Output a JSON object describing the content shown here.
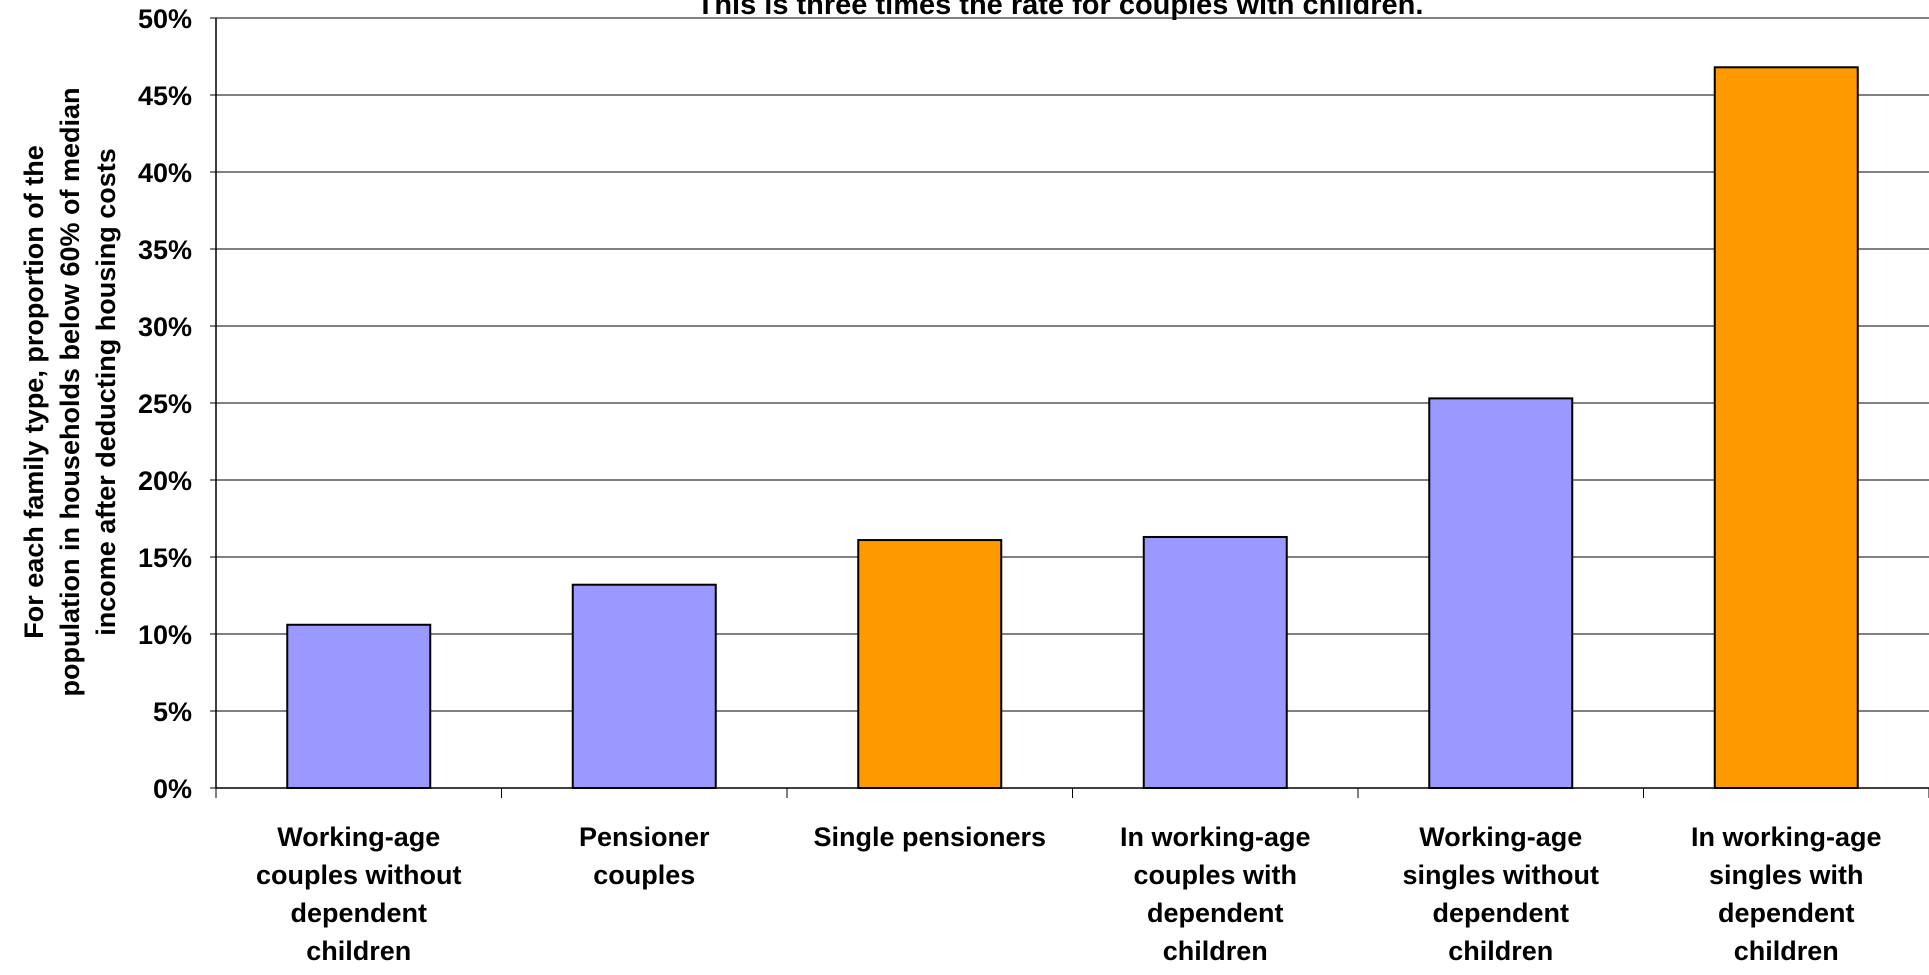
{
  "chart_data": {
    "type": "bar",
    "title": "This is three times the rate for couples with children.",
    "ylabel_lines": [
      "For each family type, proportion of the",
      "population in households below 60% of median",
      "income after deducting housing costs"
    ],
    "xlabel": "",
    "ylim": [
      0,
      50
    ],
    "yticks": [
      "0%",
      "5%",
      "10%",
      "15%",
      "20%",
      "25%",
      "30%",
      "35%",
      "40%",
      "45%",
      "50%"
    ],
    "grid": true,
    "categories": [
      [
        "Working-age",
        "couples without",
        "dependent",
        "children"
      ],
      [
        "Pensioner",
        "couples"
      ],
      [
        "Single pensioners"
      ],
      [
        "In working-age",
        "couples with",
        "dependent",
        "children"
      ],
      [
        "Working-age",
        "singles without",
        "dependent",
        "children"
      ],
      [
        "In working-age",
        "singles with",
        "dependent",
        "children"
      ]
    ],
    "values": [
      10.6,
      13.2,
      16.1,
      16.3,
      25.3,
      46.8
    ],
    "bar_colors": [
      "#9999ff",
      "#9999ff",
      "#ff9900",
      "#9999ff",
      "#9999ff",
      "#ff9900"
    ]
  }
}
